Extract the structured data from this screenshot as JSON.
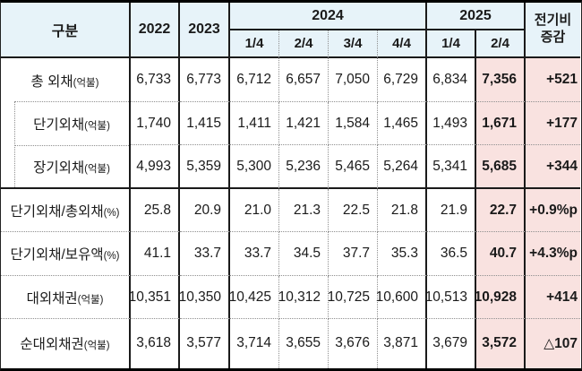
{
  "colors": {
    "header_bg": "#e7f3f9",
    "highlight_bg": "#f9e2e0",
    "grid_line": "#1a1a1a",
    "grid_dotted": "#8f8f8f",
    "outer_border": "#000000"
  },
  "table": {
    "corner_header": "구분",
    "year_columns": [
      "2022",
      "2023"
    ],
    "year_groups": [
      {
        "label": "2024",
        "quarters": [
          "1/4",
          "2/4",
          "3/4",
          "4/4"
        ]
      },
      {
        "label": "2025",
        "quarters": [
          "1/4",
          "2/4"
        ]
      }
    ],
    "change_header": [
      "전기비",
      "증감"
    ],
    "rows": [
      {
        "label": "총 외채",
        "unit": "(억불)",
        "indent": false,
        "values": [
          "6,733",
          "6,773",
          "6,712",
          "6,657",
          "7,050",
          "6,729",
          "6,834",
          "7,356"
        ],
        "change": "+521"
      },
      {
        "label": "단기외채",
        "unit": "(억불)",
        "indent": true,
        "values": [
          "1,740",
          "1,415",
          "1,411",
          "1,421",
          "1,584",
          "1,465",
          "1,493",
          "1,671"
        ],
        "change": "+177"
      },
      {
        "label": "장기외채",
        "unit": "(억불)",
        "indent": true,
        "values": [
          "4,993",
          "5,359",
          "5,300",
          "5,236",
          "5,465",
          "5,264",
          "5,341",
          "5,685"
        ],
        "change": "+344"
      },
      {
        "label": "단기외채/총외채",
        "unit": "(%)",
        "indent": false,
        "values": [
          "25.8",
          "20.9",
          "21.0",
          "21.3",
          "22.5",
          "21.8",
          "21.9",
          "22.7"
        ],
        "change": "+0.9%p"
      },
      {
        "label": "단기외채/보유액",
        "unit": "(%)",
        "indent": false,
        "values": [
          "41.1",
          "33.7",
          "33.7",
          "34.5",
          "37.7",
          "35.3",
          "36.5",
          "40.7"
        ],
        "change": "+4.3%p"
      },
      {
        "label": "대외채권",
        "unit": "(억불)",
        "indent": false,
        "values": [
          "10,351",
          "10,350",
          "10,425",
          "10,312",
          "10,725",
          "10,600",
          "10,513",
          "10,928"
        ],
        "change": "+414"
      },
      {
        "label": "순대외채권",
        "unit": "(억불)",
        "indent": false,
        "values": [
          "3,618",
          "3,577",
          "3,714",
          "3,655",
          "3,676",
          "3,871",
          "3,679",
          "3,572"
        ],
        "change": "△107"
      }
    ]
  },
  "chart_data": {
    "type": "table",
    "columns": [
      "구분",
      "2022",
      "2023",
      "2024 1/4",
      "2024 2/4",
      "2024 3/4",
      "2024 4/4",
      "2025 1/4",
      "2025 2/4",
      "전기비 증감"
    ],
    "rows": [
      [
        "총 외채(억불)",
        6733,
        6773,
        6712,
        6657,
        7050,
        6729,
        6834,
        7356,
        "+521"
      ],
      [
        "단기외채(억불)",
        1740,
        1415,
        1411,
        1421,
        1584,
        1465,
        1493,
        1671,
        "+177"
      ],
      [
        "장기외채(억불)",
        4993,
        5359,
        5300,
        5236,
        5465,
        5264,
        5341,
        5685,
        "+344"
      ],
      [
        "단기외채/총외채(%)",
        25.8,
        20.9,
        21.0,
        21.3,
        22.5,
        21.8,
        21.9,
        22.7,
        "+0.9%p"
      ],
      [
        "단기외채/보유액(%)",
        41.1,
        33.7,
        33.7,
        34.5,
        37.7,
        35.3,
        36.5,
        40.7,
        "+4.3%p"
      ],
      [
        "대외채권(억불)",
        10351,
        10350,
        10425,
        10312,
        10725,
        10600,
        10513,
        10928,
        "+414"
      ],
      [
        "순대외채권(억불)",
        3618,
        3577,
        3714,
        3655,
        3676,
        3871,
        3679,
        3572,
        "△107"
      ]
    ]
  }
}
